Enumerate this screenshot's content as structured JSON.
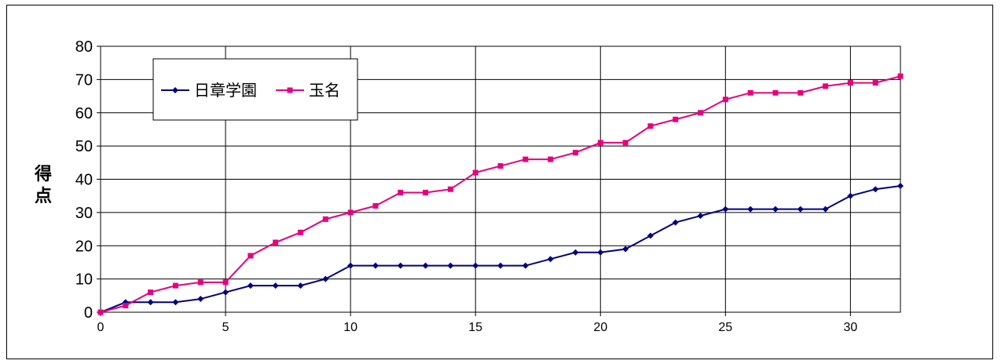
{
  "chart_data": {
    "type": "line",
    "ylabel": "得点",
    "xlim": [
      0,
      32
    ],
    "ylim": [
      0,
      80
    ],
    "x_ticks": [
      0,
      5,
      10,
      15,
      20,
      25,
      30
    ],
    "y_ticks": [
      0,
      10,
      20,
      30,
      40,
      50,
      60,
      70,
      80
    ],
    "grid": true,
    "legend": "top-left",
    "x": [
      0,
      1,
      2,
      3,
      4,
      5,
      6,
      7,
      8,
      9,
      10,
      11,
      12,
      13,
      14,
      15,
      16,
      17,
      18,
      19,
      20,
      21,
      22,
      23,
      24,
      25,
      26,
      27,
      28,
      29,
      30,
      31,
      32
    ],
    "series": [
      {
        "name": "日章学園",
        "color": "#000080",
        "marker": "diamond",
        "values": [
          0,
          3,
          3,
          3,
          4,
          6,
          8,
          8,
          8,
          10,
          14,
          14,
          14,
          14,
          14,
          14,
          14,
          14,
          16,
          18,
          18,
          19,
          23,
          27,
          29,
          31,
          31,
          31,
          31,
          31,
          35,
          37,
          38
        ]
      },
      {
        "name": "玉名",
        "color": "#e6007e",
        "marker": "square",
        "values": [
          0,
          2,
          6,
          8,
          9,
          9,
          17,
          21,
          24,
          28,
          30,
          32,
          36,
          36,
          37,
          42,
          44,
          46,
          46,
          48,
          51,
          51,
          56,
          58,
          60,
          64,
          66,
          66,
          66,
          68,
          69,
          69,
          71
        ]
      }
    ]
  }
}
